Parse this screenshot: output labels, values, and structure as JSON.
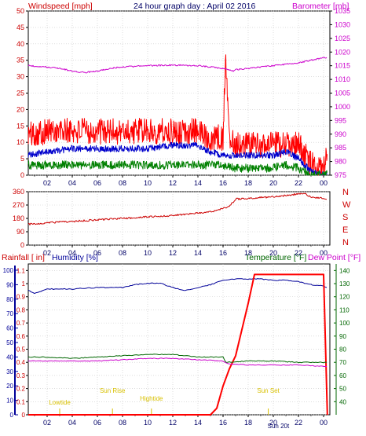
{
  "chart_data": [
    {
      "type": "line",
      "title": "24 hour graph day : April 02 2016",
      "left_axis_label": "Windspeed [mph]",
      "right_axis_label": "Barometer [mb]",
      "x_tick_labels": [
        "02",
        "04",
        "06",
        "08",
        "10",
        "12",
        "14",
        "16",
        "18",
        "20",
        "22",
        "00"
      ],
      "y_left_ticks": [
        0,
        5,
        10,
        15,
        20,
        25,
        30,
        35,
        40,
        45,
        50
      ],
      "y_right_ticks": [
        975,
        980,
        985,
        990,
        995,
        1000,
        1005,
        1010,
        1015,
        1020,
        1025,
        1030,
        1035
      ],
      "ylim_left": [
        0,
        50
      ],
      "ylim_right": [
        975,
        1035
      ],
      "x_range_hours": [
        0.5,
        24.5
      ],
      "series": [
        {
          "name": "gust",
          "color": "#ff0000",
          "x": [
            0.5,
            2,
            4,
            6,
            8,
            10,
            12,
            14,
            15,
            16,
            16.2,
            16.5,
            17,
            18,
            19,
            20,
            21,
            22,
            23,
            23.5,
            24,
            24.3
          ],
          "y": [
            12,
            13,
            13,
            13,
            13,
            13,
            13,
            13,
            11,
            11,
            35,
            12,
            9,
            9,
            9,
            9,
            9,
            9,
            3,
            1,
            1,
            6
          ]
        },
        {
          "name": "average",
          "color": "#0000cc",
          "x": [
            0.5,
            2,
            4,
            6,
            8,
            10,
            12,
            14,
            15,
            16,
            17,
            18,
            19,
            20,
            21,
            22,
            23,
            24,
            24.3
          ],
          "y": [
            6,
            7,
            8,
            8,
            8,
            8,
            9,
            9,
            7,
            6,
            6,
            6,
            6,
            6,
            7,
            5,
            1,
            0,
            1
          ]
        },
        {
          "name": "lull",
          "color": "#008000",
          "x": [
            0.5,
            2,
            4,
            6,
            8,
            10,
            12,
            14,
            15,
            16,
            17,
            18,
            19,
            20,
            21,
            22,
            23,
            24,
            24.3
          ],
          "y": [
            3,
            3,
            3,
            3,
            3,
            3,
            3,
            3,
            3,
            3,
            2,
            2,
            2,
            2,
            3,
            2,
            0,
            0,
            0
          ]
        },
        {
          "name": "barometer",
          "color": "#cc00cc",
          "axis": "right",
          "x": [
            0.5,
            2,
            3,
            4,
            5,
            6,
            7,
            8,
            10,
            12,
            14,
            15,
            16,
            16.8,
            17,
            18,
            20,
            22,
            23,
            24,
            24.3
          ],
          "y": [
            1015,
            1014.5,
            1014,
            1013,
            1012.5,
            1013,
            1014,
            1014.5,
            1015,
            1015.2,
            1015,
            1014.5,
            1014,
            1013,
            1013.5,
            1014,
            1015,
            1016,
            1017,
            1018,
            1018
          ]
        }
      ]
    },
    {
      "type": "line",
      "right_direction_labels": [
        "N",
        "W",
        "S",
        "E",
        "N"
      ],
      "y_left_ticks": [
        0,
        90,
        180,
        270,
        360
      ],
      "ylim": [
        0,
        360
      ],
      "x_tick_labels": [
        "02",
        "04",
        "06",
        "08",
        "10",
        "12",
        "14",
        "16",
        "18",
        "20",
        "22",
        "00"
      ],
      "series": [
        {
          "name": "direction",
          "color": "#cc0000",
          "x": [
            0.5,
            2,
            4,
            6,
            8,
            10,
            12,
            14,
            15,
            16,
            16.5,
            17,
            18,
            20,
            22,
            22.5,
            23,
            24,
            24.3
          ],
          "y": [
            140,
            150,
            160,
            170,
            180,
            190,
            200,
            215,
            225,
            245,
            260,
            310,
            315,
            325,
            345,
            350,
            320,
            315,
            305
          ]
        }
      ]
    },
    {
      "type": "line",
      "labels": {
        "rain": "Rainfall [ in]",
        "humidity": "Humidity [%]",
        "temperature": "Temperature [°F]",
        "dew": "Dew Point [°F]"
      },
      "y_rain_ticks": [
        0,
        0.1,
        0.2,
        0.3,
        0.4,
        0.5,
        0.6,
        0.7,
        0.8,
        0.9,
        1,
        1.1
      ],
      "y_hum_ticks": [
        0,
        10,
        20,
        30,
        40,
        50,
        60,
        70,
        80,
        90,
        100
      ],
      "y_temp_ticks": [
        40,
        50,
        60,
        70,
        80,
        90,
        100,
        110,
        120,
        130,
        140
      ],
      "ylim_rain": [
        0,
        1.15
      ],
      "ylim_hum": [
        0,
        100
      ],
      "ylim_temp": [
        30,
        145
      ],
      "x_tick_labels": [
        "02",
        "04",
        "06",
        "08",
        "10",
        "12",
        "14",
        "16",
        "18",
        "20",
        "22",
        "00"
      ],
      "annotations": [
        {
          "text": "Lowtide",
          "x": 3
        },
        {
          "text": "Sun Rise",
          "x": 7.2
        },
        {
          "text": "Hightide",
          "x": 10.3
        },
        {
          "text": "Sun Set",
          "x": 19.6
        },
        {
          "text": "Sun 20t",
          "x": 20.4
        }
      ],
      "series": [
        {
          "name": "humidity",
          "color": "#000099",
          "axis": "hum",
          "x": [
            0.5,
            1,
            2,
            4,
            6,
            8,
            9,
            10,
            11,
            12,
            13,
            14,
            15,
            16,
            17,
            18,
            19,
            20,
            21,
            22,
            23,
            24,
            24.3
          ],
          "y": [
            86,
            84,
            87,
            87,
            88,
            88,
            90,
            91,
            91,
            88,
            86,
            88,
            90,
            93,
            94,
            94,
            94,
            93,
            93,
            92,
            90,
            89,
            88
          ]
        },
        {
          "name": "rainfall",
          "color": "#ff0000",
          "axis": "rain",
          "x": [
            0.5,
            15,
            15.5,
            16,
            16.5,
            17,
            18,
            18.5,
            19,
            20,
            24,
            24.3
          ],
          "y": [
            0,
            0,
            0.05,
            0.22,
            0.35,
            0.45,
            0.85,
            1.07,
            1.07,
            1.07,
            1.07,
            0
          ]
        },
        {
          "name": "temperature",
          "color": "#006600",
          "axis": "temp",
          "x": [
            0.5,
            2,
            4,
            6,
            8,
            10,
            12,
            14,
            16,
            16.2,
            18,
            20,
            22,
            24,
            24.3
          ],
          "y": [
            74,
            74,
            73,
            74,
            75,
            76,
            76,
            74,
            74,
            70,
            71,
            71,
            70,
            70,
            70
          ]
        },
        {
          "name": "dew point",
          "color": "#cc00cc",
          "axis": "temp",
          "x": [
            0.5,
            2,
            4,
            6,
            8,
            10,
            12,
            14,
            16,
            16.3,
            18,
            20,
            22,
            24,
            24.3
          ],
          "y": [
            71,
            71,
            71,
            71,
            72,
            73,
            73,
            72,
            71,
            69,
            68,
            68,
            68,
            67,
            67
          ]
        }
      ]
    }
  ]
}
